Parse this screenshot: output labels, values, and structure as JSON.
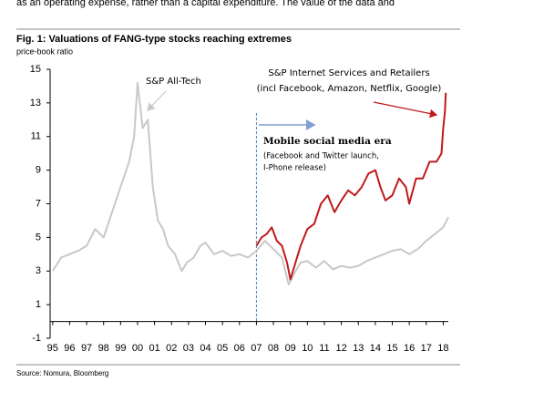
{
  "document": {
    "top_text": "as an operating expense, rather than a capital expenditure. The value of the data and",
    "source": "Source: Nomura, Bloomberg"
  },
  "chart_data": {
    "type": "line",
    "title": "Fig. 1: Valuations of FANG-type stocks reaching extremes",
    "subtitle": "price-book ratio",
    "xlim": [
      1994.85,
      2018.3
    ],
    "ylim": [
      -1,
      15
    ],
    "yticks": [
      -1,
      1,
      3,
      5,
      7,
      9,
      11,
      13,
      15
    ],
    "xticks": [
      {
        "value": 1995,
        "label": "95"
      },
      {
        "value": 1996,
        "label": "96"
      },
      {
        "value": 1997,
        "label": "97"
      },
      {
        "value": 1998,
        "label": "98"
      },
      {
        "value": 1999,
        "label": "99"
      },
      {
        "value": 2000,
        "label": "00"
      },
      {
        "value": 2001,
        "label": "01"
      },
      {
        "value": 2002,
        "label": "02"
      },
      {
        "value": 2003,
        "label": "03"
      },
      {
        "value": 2004,
        "label": "04"
      },
      {
        "value": 2005,
        "label": "05"
      },
      {
        "value": 2006,
        "label": "06"
      },
      {
        "value": 2007,
        "label": "07"
      },
      {
        "value": 2008,
        "label": "08"
      },
      {
        "value": 2009,
        "label": "09"
      },
      {
        "value": 2010,
        "label": "10"
      },
      {
        "value": 2011,
        "label": "11"
      },
      {
        "value": 2012,
        "label": "12"
      },
      {
        "value": 2013,
        "label": "13"
      },
      {
        "value": 2014,
        "label": "14"
      },
      {
        "value": 2015,
        "label": "15"
      },
      {
        "value": 2016,
        "label": "16"
      },
      {
        "value": 2017,
        "label": "17"
      },
      {
        "value": 2018,
        "label": "18"
      }
    ],
    "series": [
      {
        "name": "S&P All-Tech",
        "color": "#c8c8c8",
        "x": [
          1995.0,
          1995.5,
          1996.0,
          1996.5,
          1997.0,
          1997.5,
          1998.0,
          1998.5,
          1999.0,
          1999.5,
          1999.8,
          2000.0,
          2000.3,
          2000.6,
          2000.9,
          2001.2,
          2001.5,
          2001.8,
          2002.2,
          2002.6,
          2002.9,
          2003.3,
          2003.7,
          2004.0,
          2004.5,
          2005.0,
          2005.5,
          2006.0,
          2006.5,
          2007.0,
          2007.5,
          2008.0,
          2008.5,
          2008.9,
          2009.2,
          2009.6,
          2010.0,
          2010.5,
          2011.0,
          2011.5,
          2012.0,
          2012.5,
          2013.0,
          2013.5,
          2014.0,
          2014.5,
          2015.0,
          2015.5,
          2016.0,
          2016.5,
          2017.0,
          2017.5,
          2018.0,
          2018.3
        ],
        "values": [
          3.0,
          3.8,
          4.0,
          4.2,
          4.5,
          5.5,
          5.0,
          6.5,
          8.0,
          9.5,
          11.0,
          14.2,
          11.5,
          12.0,
          8.0,
          6.0,
          5.5,
          4.5,
          4.0,
          3.0,
          3.5,
          3.8,
          4.5,
          4.7,
          4.0,
          4.2,
          3.9,
          4.0,
          3.8,
          4.2,
          4.8,
          4.3,
          3.8,
          2.2,
          2.8,
          3.5,
          3.6,
          3.2,
          3.6,
          3.1,
          3.3,
          3.2,
          3.3,
          3.6,
          3.8,
          4.0,
          4.2,
          4.3,
          4.0,
          4.3,
          4.8,
          5.2,
          5.6,
          6.2
        ]
      },
      {
        "name": "S&P Internet Services and Retailers",
        "color": "#c0191c",
        "x": [
          2007.0,
          2007.3,
          2007.6,
          2007.9,
          2008.2,
          2008.5,
          2008.8,
          2009.0,
          2009.3,
          2009.6,
          2010.0,
          2010.4,
          2010.8,
          2011.2,
          2011.6,
          2012.0,
          2012.4,
          2012.8,
          2013.2,
          2013.6,
          2014.0,
          2014.3,
          2014.6,
          2015.0,
          2015.4,
          2015.8,
          2016.0,
          2016.4,
          2016.8,
          2017.2,
          2017.6,
          2017.9,
          2018.0,
          2018.1,
          2018.15
        ],
        "values": [
          4.5,
          5.0,
          5.2,
          5.6,
          4.8,
          4.5,
          3.5,
          2.5,
          3.5,
          4.5,
          5.5,
          5.8,
          7.0,
          7.5,
          6.5,
          7.2,
          7.8,
          7.5,
          8.0,
          8.8,
          9.0,
          8.0,
          7.2,
          7.5,
          8.5,
          8.0,
          7.0,
          8.5,
          8.5,
          9.5,
          9.5,
          10.0,
          11.5,
          12.5,
          13.6
        ]
      }
    ],
    "reference_line": {
      "x": 2007,
      "color": "#4f81bd"
    },
    "annotations": [
      "S&P All-Tech",
      "S&P Internet Services and Retailers",
      "(incl Facebook, Amazon, Netflix, Google)",
      "Mobile social media era",
      "(Facebook and Twitter launch,",
      "I-Phone release)"
    ]
  }
}
